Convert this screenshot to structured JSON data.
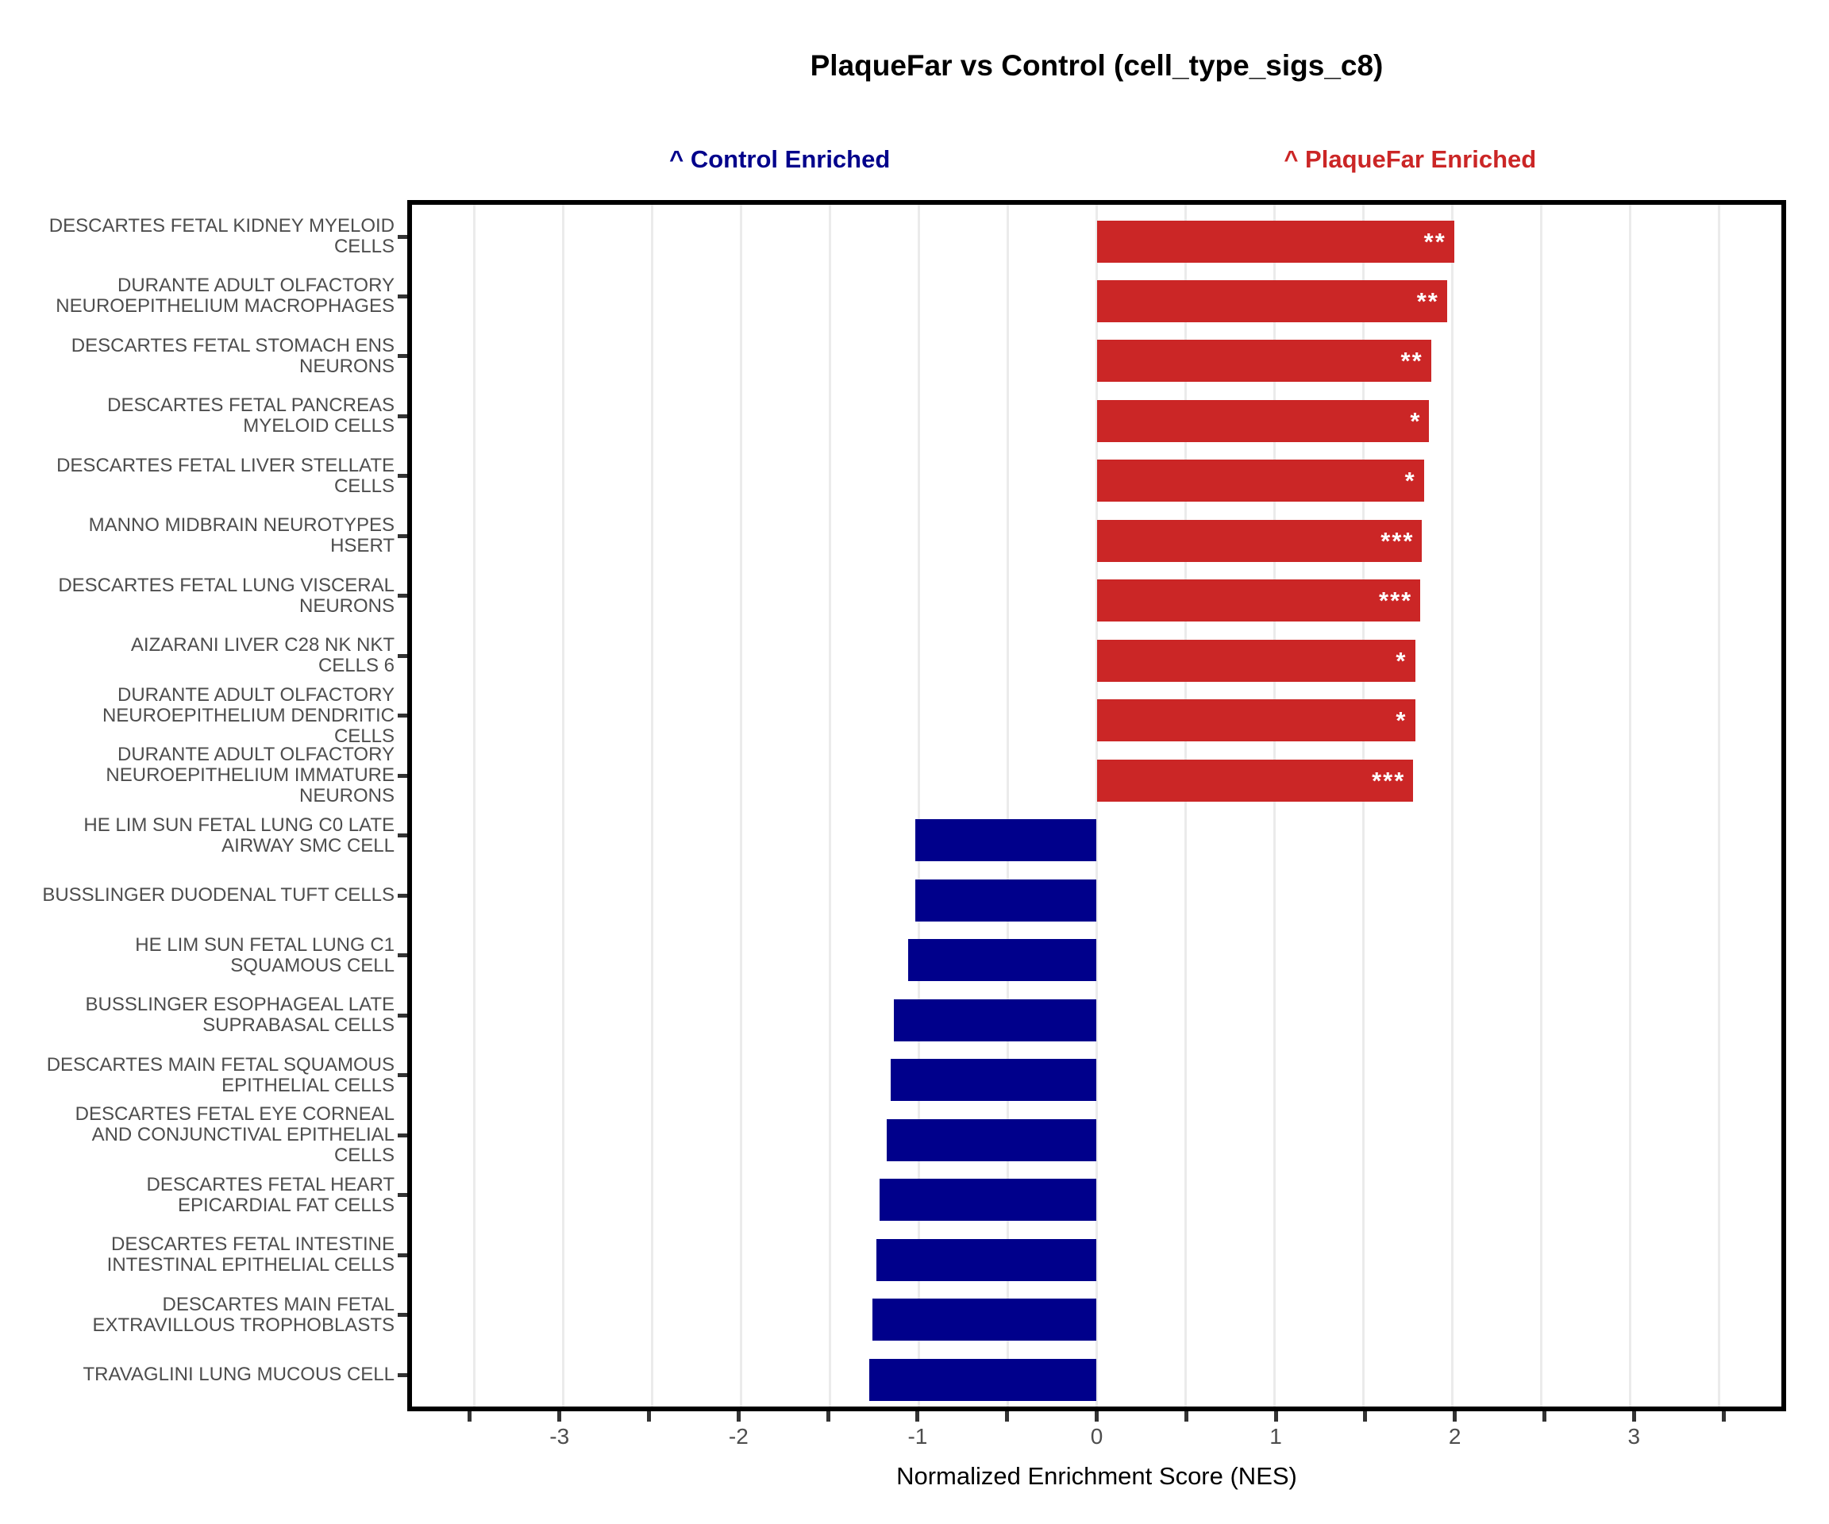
{
  "chart_data": {
    "type": "bar",
    "orientation": "horizontal",
    "title": "PlaqueFar vs Control (cell_type_sigs_c8)",
    "left_header": "^ Control Enriched",
    "right_header": "^ PlaqueFar Enriched",
    "xlabel": "Normalized Enrichment Score (NES)",
    "ylabel": "",
    "xlim": [
      -3.85,
      3.85
    ],
    "x_tick_labels": [
      -3,
      -2,
      -1,
      0,
      1,
      2,
      3
    ],
    "gridlines_every": 0.5,
    "grid_on": true,
    "legend_position": "none",
    "annotation_x": {
      "left": -1.77,
      "right": 1.75
    },
    "colors": {
      "positive_bar": "#CB2626",
      "negative_bar": "#00008B",
      "left_header_text": "#00008B",
      "right_header_text": "#CB2626",
      "grid": "#EBEBEB",
      "axis_text": "#4D4D4D",
      "panel_border": "#000000"
    },
    "significance_note": "stars shown inside positive bars",
    "bars": [
      {
        "lines": [
          "DESCARTES FETAL KIDNEY MYELOID",
          "CELLS"
        ],
        "nes": 2.01,
        "stars": "**"
      },
      {
        "lines": [
          "DURANTE ADULT OLFACTORY",
          "NEUROEPITHELIUM MACROPHAGES"
        ],
        "nes": 1.97,
        "stars": "**"
      },
      {
        "lines": [
          "DESCARTES FETAL STOMACH ENS",
          "NEURONS"
        ],
        "nes": 1.88,
        "stars": "**"
      },
      {
        "lines": [
          "DESCARTES FETAL PANCREAS",
          "MYELOID CELLS"
        ],
        "nes": 1.87,
        "stars": "*"
      },
      {
        "lines": [
          "DESCARTES FETAL LIVER STELLATE",
          "CELLS"
        ],
        "nes": 1.84,
        "stars": "*"
      },
      {
        "lines": [
          "MANNO MIDBRAIN NEUROTYPES",
          "HSERT"
        ],
        "nes": 1.83,
        "stars": "***"
      },
      {
        "lines": [
          "DESCARTES FETAL LUNG VISCERAL",
          "NEURONS"
        ],
        "nes": 1.82,
        "stars": "***"
      },
      {
        "lines": [
          "AIZARANI LIVER C28 NK NKT",
          "CELLS 6"
        ],
        "nes": 1.79,
        "stars": "*"
      },
      {
        "lines": [
          "DURANTE ADULT OLFACTORY",
          "NEUROEPITHELIUM DENDRITIC",
          "CELLS"
        ],
        "nes": 1.79,
        "stars": "*"
      },
      {
        "lines": [
          "DURANTE ADULT OLFACTORY",
          "NEUROEPITHELIUM IMMATURE",
          "NEURONS"
        ],
        "nes": 1.78,
        "stars": "***"
      },
      {
        "lines": [
          "HE LIM SUN FETAL LUNG C0 LATE",
          "AIRWAY SMC CELL"
        ],
        "nes": -1.02,
        "stars": ""
      },
      {
        "lines": [
          "BUSSLINGER DUODENAL TUFT CELLS"
        ],
        "nes": -1.02,
        "stars": ""
      },
      {
        "lines": [
          "HE LIM SUN FETAL LUNG C1",
          "SQUAMOUS CELL"
        ],
        "nes": -1.06,
        "stars": ""
      },
      {
        "lines": [
          "BUSSLINGER ESOPHAGEAL LATE",
          "SUPRABASAL CELLS"
        ],
        "nes": -1.14,
        "stars": ""
      },
      {
        "lines": [
          "DESCARTES MAIN FETAL SQUAMOUS",
          "EPITHELIAL CELLS"
        ],
        "nes": -1.16,
        "stars": ""
      },
      {
        "lines": [
          "DESCARTES FETAL EYE CORNEAL",
          "AND CONJUNCTIVAL EPITHELIAL",
          "CELLS"
        ],
        "nes": -1.18,
        "stars": ""
      },
      {
        "lines": [
          "DESCARTES FETAL HEART",
          "EPICARDIAL FAT CELLS"
        ],
        "nes": -1.22,
        "stars": ""
      },
      {
        "lines": [
          "DESCARTES FETAL INTESTINE",
          "INTESTINAL EPITHELIAL CELLS"
        ],
        "nes": -1.24,
        "stars": ""
      },
      {
        "lines": [
          "DESCARTES MAIN FETAL",
          "EXTRAVILLOUS TROPHOBLASTS"
        ],
        "nes": -1.26,
        "stars": ""
      },
      {
        "lines": [
          "TRAVAGLINI LUNG MUCOUS CELL"
        ],
        "nes": -1.28,
        "stars": ""
      }
    ]
  }
}
